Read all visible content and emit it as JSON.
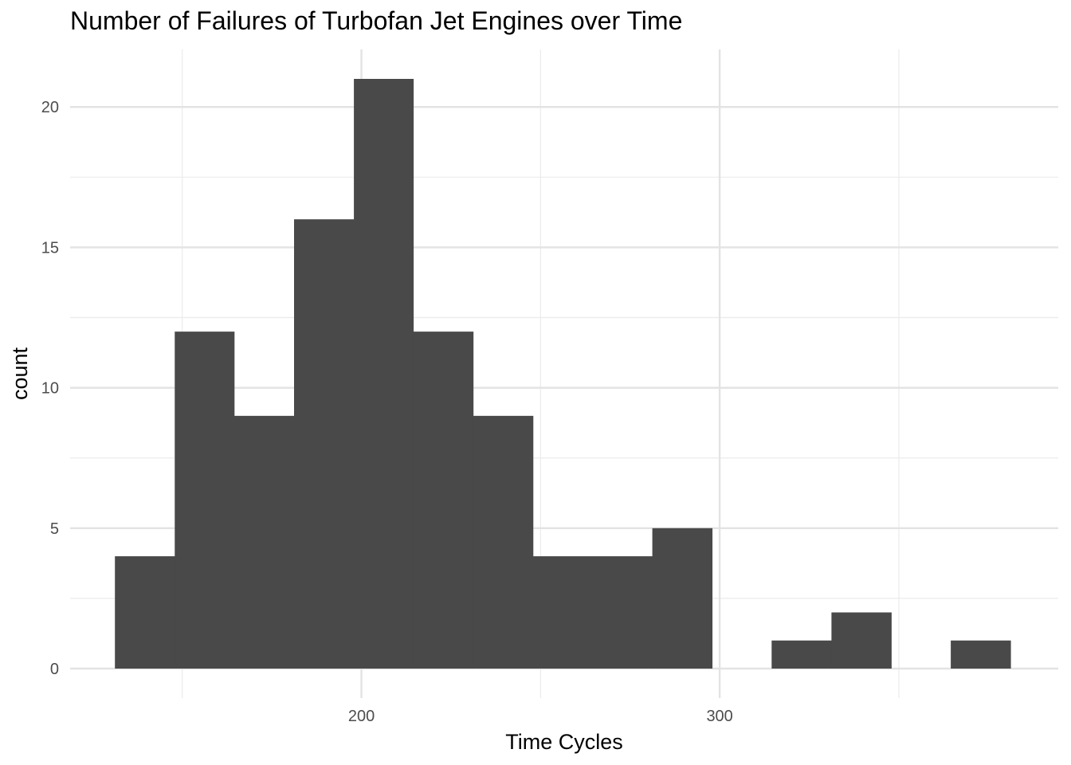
{
  "chart_data": {
    "type": "bar",
    "title": "Number of Failures of Turbofan Jet Engines over Time",
    "xlabel": "Time Cycles",
    "ylabel": "count",
    "xlim": [
      118.7,
      394.5
    ],
    "ylim": [
      -1.05,
      22.05
    ],
    "x_ticks": [
      200,
      300
    ],
    "x_minor_ticks": [
      150,
      250,
      350
    ],
    "y_ticks": [
      0,
      5,
      10,
      15,
      20
    ],
    "y_minor_ticks": [
      2.5,
      7.5,
      12.5,
      17.5
    ],
    "bin_width": 16.67,
    "bins": [
      {
        "x0": 131.2,
        "x1": 147.9,
        "count": 4
      },
      {
        "x0": 147.9,
        "x1": 164.5,
        "count": 12
      },
      {
        "x0": 164.5,
        "x1": 181.2,
        "count": 9
      },
      {
        "x0": 181.2,
        "x1": 197.9,
        "count": 16
      },
      {
        "x0": 197.9,
        "x1": 214.5,
        "count": 21
      },
      {
        "x0": 214.5,
        "x1": 231.2,
        "count": 12
      },
      {
        "x0": 231.2,
        "x1": 247.9,
        "count": 9
      },
      {
        "x0": 247.9,
        "x1": 264.5,
        "count": 4
      },
      {
        "x0": 264.5,
        "x1": 281.2,
        "count": 4
      },
      {
        "x0": 281.2,
        "x1": 297.9,
        "count": 5
      },
      {
        "x0": 297.9,
        "x1": 314.5,
        "count": 0
      },
      {
        "x0": 314.5,
        "x1": 331.2,
        "count": 1
      },
      {
        "x0": 331.2,
        "x1": 347.9,
        "count": 2
      },
      {
        "x0": 347.9,
        "x1": 364.5,
        "count": 0
      },
      {
        "x0": 364.5,
        "x1": 381.2,
        "count": 1
      }
    ],
    "bar_color": "#494949",
    "grid": true,
    "legend": "none"
  }
}
